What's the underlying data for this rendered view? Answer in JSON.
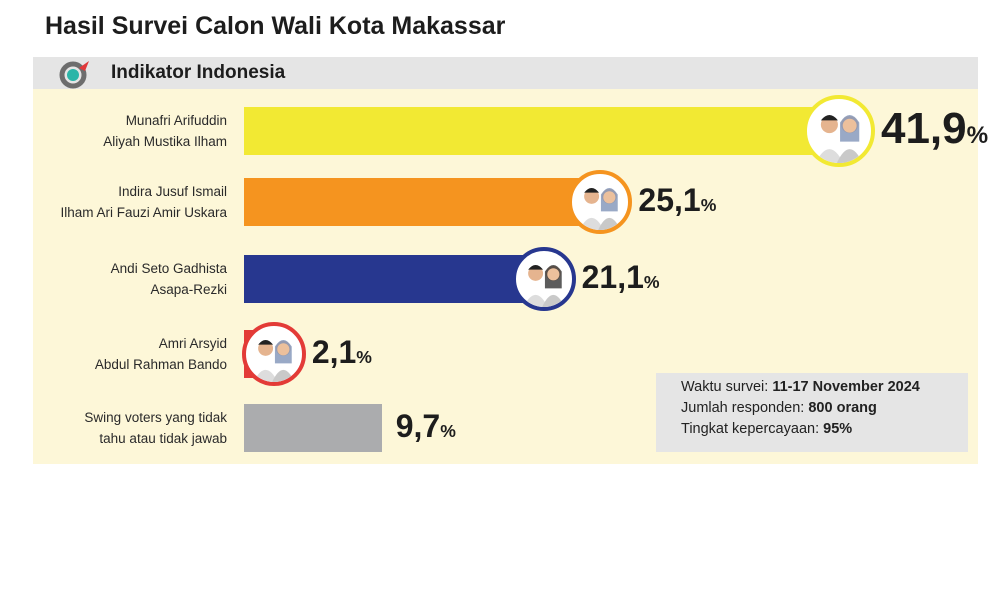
{
  "chart_data": {
    "type": "bar",
    "orientation": "horizontal",
    "title": "Hasil Survei Calon Wali Kota Makassar",
    "source": "Indikator Indonesia",
    "categories": [
      [
        "Munafri Arifuddin",
        "Aliyah Mustika Ilham"
      ],
      [
        "Indira Jusuf Ismail",
        "Ilham Ari Fauzi Amir Uskara"
      ],
      [
        "Andi Seto Gadhista",
        "Asapa-Rezki"
      ],
      [
        "Amri Arsyid",
        "Abdul Rahman Bando"
      ],
      [
        "Swing voters yang tidak",
        "tahu atau tidak jawab"
      ]
    ],
    "values": [
      41.9,
      25.1,
      21.1,
      2.1,
      9.7
    ],
    "value_labels": [
      "41,9",
      "25,1",
      "21,1",
      "2,1",
      "9,7"
    ],
    "unit": "%",
    "colors": [
      "#f2e933",
      "#f5941f",
      "#27378f",
      "#e33b37",
      "#abacae"
    ],
    "has_photo": [
      true,
      true,
      true,
      true,
      false
    ],
    "xlim": [
      0,
      42
    ]
  },
  "info": {
    "waktu_label": "Waktu survei: ",
    "waktu_value": "11-17 November 2024",
    "responden_label": "Jumlah responden: ",
    "responden_value": "800 orang",
    "kepercayaan_label": "Tingkat kepercayaan: ",
    "kepercayaan_value": "95%"
  }
}
